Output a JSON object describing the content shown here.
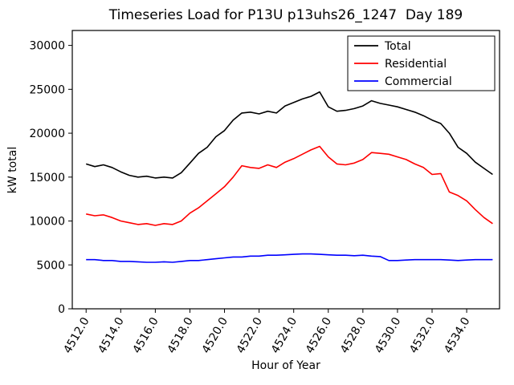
{
  "figure": {
    "title": "Timeseries Load for P13U p13uhs26_1247  Day 189",
    "xlabel": "Hour of Year",
    "ylabel": "kW total"
  },
  "chart_data": {
    "type": "line",
    "title": "Timeseries Load for P13U p13uhs26_1247  Day 189",
    "xlabel": "Hour of Year",
    "ylabel": "kW total",
    "xlim": [
      4511.2,
      4535.9
    ],
    "ylim": [
      0,
      31700
    ],
    "xticks": [
      4512,
      4514,
      4516,
      4518,
      4520,
      4522,
      4524,
      4526,
      4528,
      4530,
      4532,
      4534
    ],
    "xtick_labels": [
      "4512.0",
      "4514.0",
      "4516.0",
      "4518.0",
      "4520.0",
      "4522.0",
      "4524.0",
      "4526.0",
      "4528.0",
      "4530.0",
      "4532.0",
      "4534.0"
    ],
    "yticks": [
      0,
      5000,
      10000,
      15000,
      20000,
      25000,
      30000
    ],
    "grid": false,
    "legend_position": "upper right",
    "x": [
      4512.0,
      4512.5,
      4513.0,
      4513.5,
      4514.0,
      4514.5,
      4515.0,
      4515.5,
      4516.0,
      4516.5,
      4517.0,
      4517.5,
      4518.0,
      4518.5,
      4519.0,
      4519.5,
      4520.0,
      4520.5,
      4521.0,
      4521.5,
      4522.0,
      4522.5,
      4523.0,
      4523.5,
      4524.0,
      4524.5,
      4525.0,
      4525.5,
      4526.0,
      4526.5,
      4527.0,
      4527.5,
      4528.0,
      4528.5,
      4529.0,
      4529.5,
      4530.0,
      4530.5,
      4531.0,
      4531.5,
      4532.0,
      4532.5,
      4533.0,
      4533.5,
      4534.0,
      4534.5,
      4535.0,
      4535.5
    ],
    "series": [
      {
        "name": "Total",
        "color": "#000000",
        "values": [
          16500,
          16200,
          16400,
          16100,
          15600,
          15200,
          15000,
          15100,
          14900,
          15000,
          14900,
          15500,
          16600,
          17700,
          18400,
          19600,
          20300,
          21500,
          22300,
          22400,
          22200,
          22500,
          22300,
          23100,
          23500,
          23900,
          24200,
          24700,
          23000,
          22500,
          22600,
          22800,
          23100,
          23700,
          23400,
          23200,
          23000,
          22700,
          22400,
          22000,
          21500,
          21100,
          20000,
          18400,
          17700,
          16700,
          16000,
          15300
        ]
      },
      {
        "name": "Residential",
        "color": "#ff0000",
        "values": [
          10800,
          10600,
          10700,
          10400,
          10000,
          9800,
          9600,
          9700,
          9500,
          9700,
          9600,
          10000,
          10900,
          11500,
          12300,
          13100,
          13900,
          15000,
          16300,
          16100,
          16000,
          16400,
          16100,
          16700,
          17100,
          17600,
          18100,
          18500,
          17300,
          16500,
          16400,
          16600,
          17000,
          17800,
          17700,
          17600,
          17300,
          17000,
          16500,
          16100,
          15300,
          15400,
          13300,
          12900,
          12300,
          11300,
          10400,
          9700
        ]
      },
      {
        "name": "Commercial",
        "color": "#0000ff",
        "values": [
          5600,
          5600,
          5500,
          5500,
          5400,
          5400,
          5350,
          5300,
          5300,
          5350,
          5300,
          5400,
          5500,
          5500,
          5600,
          5700,
          5800,
          5900,
          5900,
          6000,
          6000,
          6100,
          6100,
          6150,
          6200,
          6250,
          6250,
          6200,
          6150,
          6100,
          6100,
          6050,
          6100,
          6000,
          5950,
          5500,
          5500,
          5550,
          5600,
          5600,
          5600,
          5600,
          5550,
          5500,
          5550,
          5600,
          5600,
          5600
        ]
      }
    ]
  }
}
